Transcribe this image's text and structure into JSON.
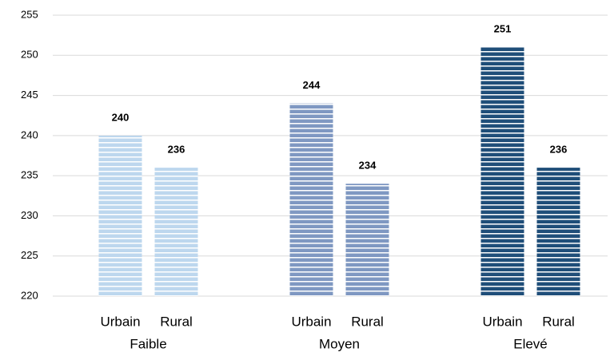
{
  "chart_data": {
    "type": "bar",
    "group_labels": [
      "Faible",
      "Moyen",
      "Elevé"
    ],
    "categories": [
      "Urbain",
      "Rural",
      "Urbain",
      "Rural",
      "Urbain",
      "Rural"
    ],
    "values": [
      240,
      236,
      244,
      234,
      251,
      236
    ],
    "colors": [
      "#bdd7ee",
      "#bdd7ee",
      "#7f98c2",
      "#7f98c2",
      "#1f4e79",
      "#1f4e79"
    ],
    "ylim": [
      220,
      255
    ],
    "yticks": [
      220,
      225,
      230,
      235,
      240,
      245,
      250,
      255
    ],
    "grid": true
  }
}
